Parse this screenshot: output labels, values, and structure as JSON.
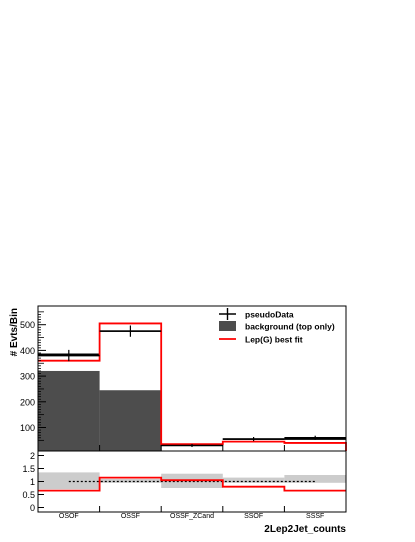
{
  "chart_data": [
    {
      "type": "bar",
      "ylabel": "# Evts/Bin",
      "xlabel": "2Lep2Jet_counts",
      "categories": [
        "OSOF",
        "OSSF",
        "OSSF_ZCand",
        "SSOF",
        "SSSF"
      ],
      "yticks": [
        100,
        200,
        300,
        400,
        500
      ],
      "ylim": [
        0,
        550
      ],
      "legend_position": "top-right",
      "grid": false,
      "series": [
        {
          "name": "pseudoData",
          "style": "points-with-errors",
          "color": "#000000",
          "values": [
            380,
            475,
            30,
            55,
            60
          ],
          "errors": [
            22,
            22,
            6,
            8,
            8
          ]
        },
        {
          "name": "background (top only)",
          "style": "filled-histogram",
          "color": "#4d4d4d",
          "values": [
            320,
            245,
            10,
            0,
            0
          ]
        },
        {
          "name": "Lep(G) best fit",
          "style": "step-line",
          "color": "#ff0000",
          "values": [
            360,
            505,
            35,
            45,
            40
          ]
        }
      ],
      "stack_boundary": [
        385,
        475,
        35,
        55,
        55
      ]
    },
    {
      "type": "bar",
      "subplot": "ratio",
      "categories": [
        "OSOF",
        "OSSF",
        "OSSF_ZCand",
        "SSOF",
        "SSSF"
      ],
      "yticks": [
        "0",
        "0.5",
        "1",
        "1.5",
        "2"
      ],
      "ylim": [
        -0.2,
        2.2
      ],
      "series": [
        {
          "name": "Lep(G) best fit",
          "style": "step-line",
          "color": "#ff0000",
          "values": [
            0.65,
            1.15,
            1.05,
            0.8,
            0.65
          ]
        },
        {
          "name": "uncertainty band",
          "style": "band",
          "color": "#cccccc",
          "low": [
            0.7,
            0.95,
            0.75,
            0.95,
            0.95
          ],
          "high": [
            1.35,
            1.1,
            1.3,
            1.15,
            1.25
          ]
        },
        {
          "name": "reference",
          "style": "dotted-line",
          "color": "#000000",
          "values": [
            1.0,
            1.0,
            1.0,
            1.0,
            1.0
          ]
        }
      ]
    }
  ]
}
